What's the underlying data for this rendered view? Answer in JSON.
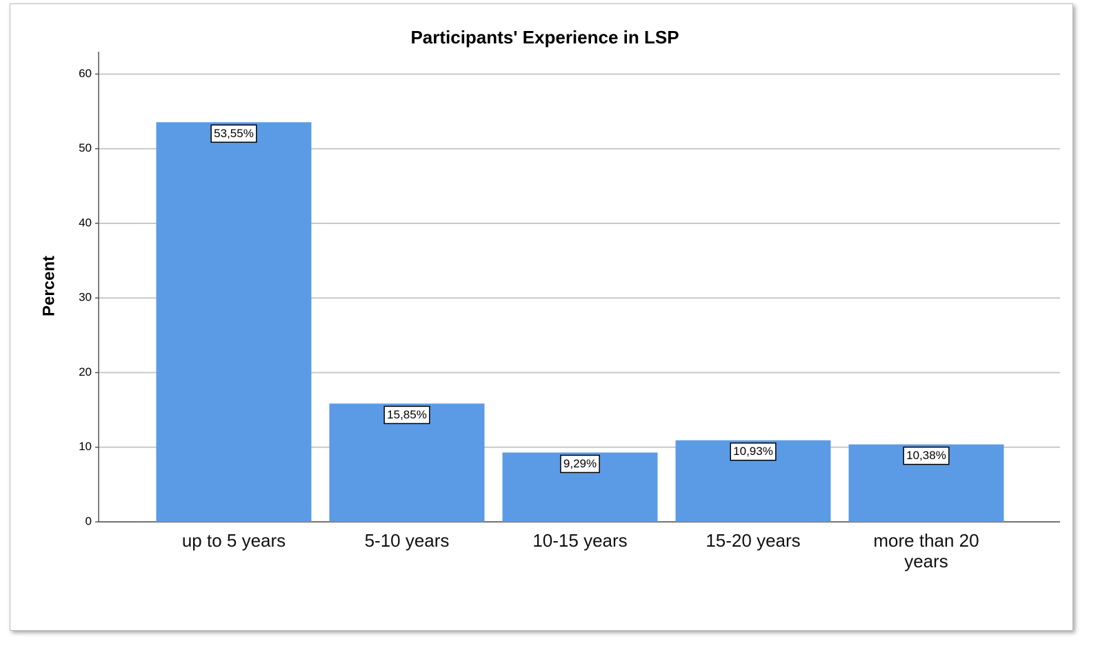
{
  "chart_data": {
    "type": "bar",
    "title": "Participants' Experience in LSP",
    "y_label": "Percent",
    "categories": [
      "up to 5 years",
      "5-10 years",
      "10-15 years",
      "15-20 years",
      "more than 20 years"
    ],
    "values": [
      53.55,
      15.85,
      9.29,
      10.93,
      10.38
    ],
    "value_labels": [
      "53,55%",
      "15,85%",
      "9,29%",
      "10,93%",
      "10,38%"
    ],
    "color": "#5b9be6",
    "ylim": [
      0,
      63
    ],
    "yticks": [
      0,
      10,
      20,
      30,
      40,
      50,
      60
    ],
    "grid": true
  }
}
